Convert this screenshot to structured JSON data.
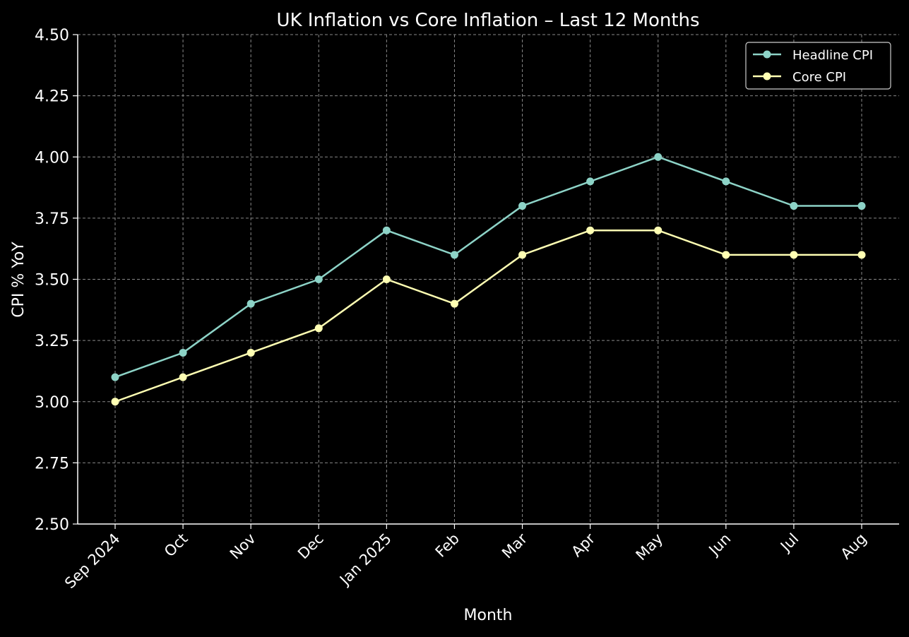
{
  "chart_data": {
    "type": "line",
    "title": "UK Inflation vs Core Inflation – Last 12 Months",
    "xlabel": "Month",
    "ylabel": "CPI % YoY",
    "categories": [
      "Sep 2024",
      "Oct",
      "Nov",
      "Dec",
      "Jan 2025",
      "Feb",
      "Mar",
      "Apr",
      "May",
      "Jun",
      "Jul",
      "Aug"
    ],
    "ylim": [
      2.5,
      4.5
    ],
    "yticks": [
      "2.50",
      "2.75",
      "3.00",
      "3.25",
      "3.50",
      "3.75",
      "4.00",
      "4.25",
      "4.50"
    ],
    "grid": true,
    "legend_position": "top-right",
    "series": [
      {
        "name": "Headline CPI",
        "color": "#8dd3c7",
        "values": [
          3.1,
          3.2,
          3.4,
          3.5,
          3.7,
          3.6,
          3.8,
          3.9,
          4.0,
          3.9,
          3.8,
          3.8
        ]
      },
      {
        "name": "Core CPI",
        "color": "#ffffb3",
        "values": [
          3.0,
          3.1,
          3.2,
          3.3,
          3.5,
          3.4,
          3.6,
          3.7,
          3.7,
          3.6,
          3.6,
          3.6
        ]
      }
    ]
  }
}
